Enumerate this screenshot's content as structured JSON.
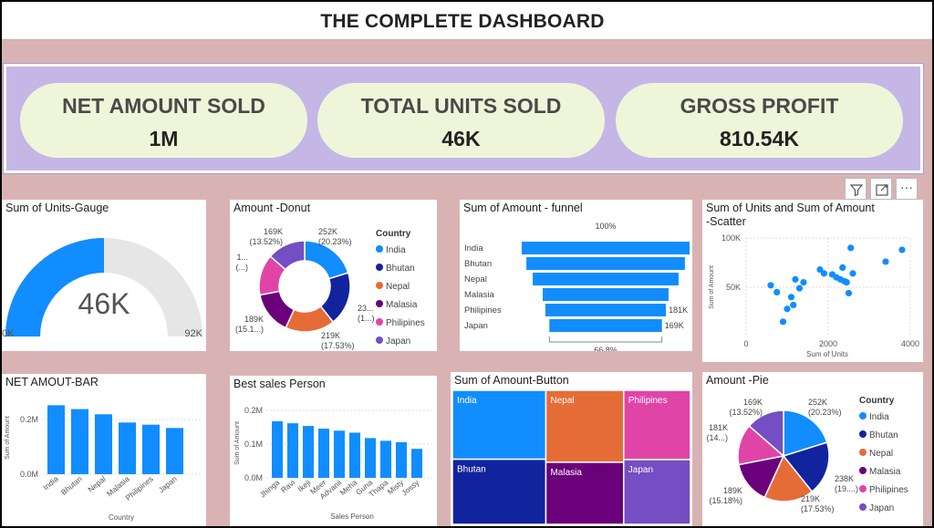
{
  "title": "THE COMPLETE DASHBOARD",
  "kpis": [
    {
      "label": "NET AMOUNT SOLD",
      "value": "1M"
    },
    {
      "label": "TOTAL UNITS SOLD",
      "value": "46K"
    },
    {
      "label": "GROSS PROFIT",
      "value": "810.54K"
    }
  ],
  "toolbar": {
    "icons": [
      "filter-icon",
      "focus-mode-icon",
      "more-options-icon"
    ],
    "more_label": "···"
  },
  "colors": {
    "blue": "#118dff",
    "navy": "#12239e",
    "orange": "#e66c37",
    "purple": "#6b007b",
    "pink": "#e044a7",
    "violet": "#744ec2",
    "gauge_track": "#e6e6e6",
    "background": "#d9b3b3",
    "kpi_band": "#c4b7e6",
    "kpi_card": "#eff5d9"
  },
  "legend": {
    "title": "Country",
    "items": [
      "India",
      "Bhutan",
      "Nepal",
      "Malasia",
      "Philipines",
      "Japan"
    ]
  },
  "chart_data": [
    {
      "id": "gauge",
      "type": "gauge",
      "title": "Sum of Units-Gauge",
      "value": 46000,
      "value_label": "46K",
      "min": 0,
      "max": 92000,
      "min_label": "0K",
      "max_label": "92K"
    },
    {
      "id": "donut",
      "type": "pie",
      "variant": "donut",
      "title": "Amount -Donut",
      "legend_title": "Country",
      "categories": [
        "India",
        "Bhutan",
        "Nepal",
        "Malasia",
        "Philipines",
        "Japan"
      ],
      "values": [
        252,
        238,
        219,
        189,
        181,
        169
      ],
      "labels": [
        "252K\n(20.23%)",
        "23...\n(1...)",
        "219K\n(17.53%)",
        "189K\n(15.1...)",
        "1...\n(...)",
        "169K\n(13.52%)"
      ]
    },
    {
      "id": "funnel",
      "type": "bar",
      "variant": "funnel",
      "title": "Sum of Amount - funnel",
      "categories": [
        "India",
        "Bhutan",
        "Nepal",
        "Malasia",
        "Philipines",
        "Japan"
      ],
      "values": [
        252,
        238,
        219,
        189,
        181,
        169
      ],
      "top_label": "100%",
      "bottom_label": "66.8%",
      "bar_labels": [
        "",
        "",
        "",
        "",
        "181K",
        "169K"
      ]
    },
    {
      "id": "scatter",
      "type": "scatter",
      "title": "Sum of Units and Sum of Amount\n-Scatter",
      "xlabel": "Sum of Units",
      "ylabel": "Sum of Amount",
      "xlim": [
        0,
        4000
      ],
      "ylim": [
        0,
        100000
      ],
      "xticks": [
        "0",
        "2000",
        "4000"
      ],
      "xtick_values": [
        0,
        2000,
        4000
      ],
      "yticks": [
        "50K",
        "100K"
      ],
      "ytick_values": [
        50000,
        100000
      ],
      "x": [
        600,
        750,
        900,
        1000,
        1100,
        1150,
        1200,
        1300,
        1400,
        1800,
        1900,
        2100,
        2200,
        2300,
        2350,
        2400,
        2450,
        2500,
        2550,
        2600,
        3400,
        3800
      ],
      "y": [
        52000,
        45000,
        15000,
        28000,
        40000,
        32000,
        58000,
        49000,
        55000,
        68000,
        64000,
        63000,
        60000,
        58000,
        70000,
        56000,
        55000,
        44000,
        90000,
        64000,
        76000,
        88000
      ]
    },
    {
      "id": "netbar",
      "type": "bar",
      "title": "NET AMOUT-BAR",
      "categories": [
        "India",
        "Bhutan",
        "Nepal",
        "Malasia",
        "Philipines",
        "Japan"
      ],
      "values": [
        252000,
        238000,
        219000,
        189000,
        181000,
        169000
      ],
      "ylim": [
        0,
        300000
      ],
      "yticks": [
        "0.0M",
        "0.2M"
      ],
      "ytick_values": [
        0,
        200000
      ],
      "xlabel": "Country",
      "ylabel": "Sum of Amount"
    },
    {
      "id": "salesperson",
      "type": "bar",
      "title": "Best sales Person",
      "categories": [
        "Jhinga",
        "Ravi",
        "Ikeji",
        "Meer",
        "Advanii",
        "Meha",
        "Guna",
        "Thapa",
        "Misty",
        "Jossy"
      ],
      "values": [
        168000,
        162000,
        154000,
        146000,
        140000,
        134000,
        118000,
        110000,
        106000,
        86000
      ],
      "ylim": [
        0,
        230000
      ],
      "yticks": [
        "0.0M",
        "0.1M",
        "0.2M"
      ],
      "ytick_values": [
        0,
        100000,
        200000
      ],
      "xlabel": "Sales Person",
      "ylabel": "Sum of Amount"
    },
    {
      "id": "treemap",
      "type": "treemap",
      "title": "Sum of Amount-Button",
      "categories": [
        "India",
        "Bhutan",
        "Nepal",
        "Malasia",
        "Philipines",
        "Japan"
      ],
      "values": [
        252,
        238,
        219,
        189,
        181,
        169
      ]
    },
    {
      "id": "pie",
      "type": "pie",
      "title": "Amount -Pie",
      "legend_title": "Country",
      "categories": [
        "India",
        "Bhutan",
        "Nepal",
        "Malasia",
        "Philipines",
        "Japan"
      ],
      "values": [
        252,
        238,
        219,
        189,
        181,
        169
      ],
      "labels": [
        "252K\n(20.23%)",
        "238K\n(19....)",
        "219K\n(17.53%)",
        "189K\n(15.18%)",
        "181K\n(14...)",
        "169K\n(13.52%)"
      ]
    }
  ]
}
